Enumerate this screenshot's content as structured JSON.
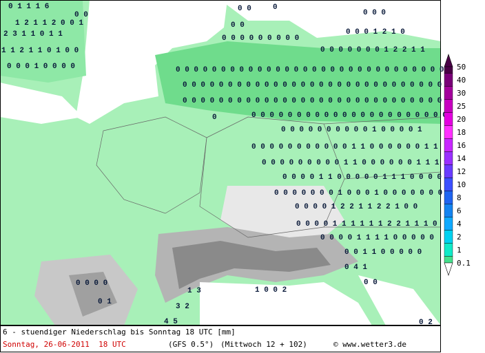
{
  "map": {
    "labels": [
      "0 1 1 1 6",
      "0 0",
      "1 2 1 1 2 0 0 1",
      "2 3 1 1 0 1 1",
      "1 1 2 1 1 0 1 0 0",
      "0 0 0 1 0 0 0 0",
      "0 0",
      "0",
      "0 0 0",
      "0 0",
      "0 0 0 1 2 1 0",
      "0 0 0 0 0 0 0 0 0",
      "0 0 0 0 0 0 0 1 2 2 1 1",
      "0 0 0 0 0 0 0 0 0 0 0 0 0 0 0 0 0 0 0 0 0 0 0 0 0 0 0 0 0 0 0",
      "0 0 0 0 0 0 0 0 0 0 0 0 0 0 0 0 0 0 0 0 0 0 0 0 0 0 0 0 0 0",
      "0 0 0 0 0 0 0 0 0 0 0 0 0 0 0 0 0 0 0 0 0 0 0 0 0 0 0 0 0 0",
      "0",
      "0 0 0 0 0 0 0 0 0 0 0 0 0 0 0 0 0 0 0 0 0 0",
      "0 0 0 0 0 0 0 0 0 0 1 0 0 0 0 1",
      "0 0 0 0 0 0 0 0 0 0 0 1 1 0 0 0 0 0 0 1 1",
      "0 0 0 0 0 0 0 0 0 1 1 0 0 0 0 0 0 1 1 1 1",
      "0 0 0 0 1 1 0 0 0 0 0 1 1 1 0 0 0 0",
      "0 0 0 0 0 0 0 1 0 0 0 1 0 0 0 0 0 0 0 0",
      "0 0 0 0 1 2 2 1 1 2 2 1 0 0",
      "0 0 0 0 1 1 1 1 1 1 2 2 1 1 1 0",
      "0 0 0 0 1 1 1 1 0 0 0 0 0",
      "0 0 1 1 0 0 0 0 0",
      "0 4 1",
      "0 0",
      "0 0 0 0",
      "0 1",
      "1 3",
      "1 0 0 2",
      "3 2",
      "4 5",
      "0 2"
    ]
  },
  "legend": {
    "labels": [
      "50",
      "40",
      "30",
      "25",
      "20",
      "18",
      "16",
      "14",
      "12",
      "10",
      "8",
      "6",
      "4",
      "2",
      "1",
      "0.1"
    ],
    "colors": [
      "#4a0046",
      "#7a0078",
      "#a4009c",
      "#c800c0",
      "#e400e0",
      "#ff30ff",
      "#c828ff",
      "#9a30ff",
      "#6a3cff",
      "#3c50ff",
      "#2064f0",
      "#1484f0",
      "#10aaff",
      "#00d2f0",
      "#10eac8",
      "#44e08c"
    ]
  },
  "footer": {
    "title": "6 - stuendiger Niederschlag bis Sonntag 18 UTC [mm]",
    "date": "Sonntag, 26-06-2011  18 UTC",
    "model": "(GFS 0.5°)",
    "run": "(Mittwoch 12 + 102)",
    "source": "© www.wetter3.de"
  }
}
